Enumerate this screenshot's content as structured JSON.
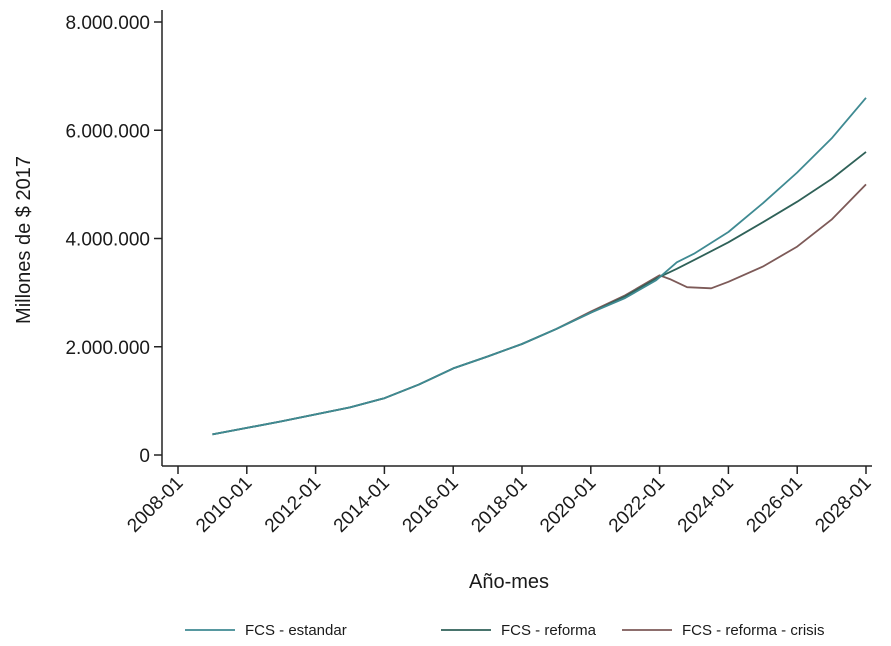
{
  "chart_data": {
    "type": "line",
    "xlabel": "Año-mes",
    "ylabel": "Millones de $ 2017",
    "x_ticks": [
      "2008-01",
      "2010-01",
      "2012-01",
      "2014-01",
      "2016-01",
      "2018-01",
      "2020-01",
      "2022-01",
      "2024-01",
      "2026-01",
      "2028-01"
    ],
    "y_ticks": [
      {
        "value": 0,
        "label": "0"
      },
      {
        "value": 2000000,
        "label": "2.000.000"
      },
      {
        "value": 4000000,
        "label": "4.000.000"
      },
      {
        "value": 6000000,
        "label": "6.000.000"
      },
      {
        "value": 8000000,
        "label": "8.000.000"
      }
    ],
    "xlim": [
      2008,
      2028
    ],
    "ylim": [
      0,
      8000000
    ],
    "legend_position": "bottom",
    "series": [
      {
        "name": "FCS - estandar",
        "color": "#3f8a92",
        "points": [
          [
            2009.0,
            380000
          ],
          [
            2010.0,
            500000
          ],
          [
            2011.0,
            620000
          ],
          [
            2012.0,
            750000
          ],
          [
            2013.0,
            880000
          ],
          [
            2014.0,
            1050000
          ],
          [
            2015.0,
            1300000
          ],
          [
            2016.0,
            1600000
          ],
          [
            2017.0,
            1820000
          ],
          [
            2018.0,
            2050000
          ],
          [
            2019.0,
            2330000
          ],
          [
            2020.0,
            2630000
          ],
          [
            2021.0,
            2900000
          ],
          [
            2021.9,
            3230000
          ],
          [
            2022.5,
            3560000
          ],
          [
            2023.0,
            3720000
          ],
          [
            2024.0,
            4120000
          ],
          [
            2025.0,
            4650000
          ],
          [
            2026.0,
            5220000
          ],
          [
            2027.0,
            5850000
          ],
          [
            2028.0,
            6600000
          ]
        ]
      },
      {
        "name": "FCS - reforma",
        "color": "#2f6158",
        "points": [
          [
            2009.0,
            380000
          ],
          [
            2010.0,
            500000
          ],
          [
            2011.0,
            620000
          ],
          [
            2012.0,
            750000
          ],
          [
            2013.0,
            880000
          ],
          [
            2014.0,
            1050000
          ],
          [
            2015.0,
            1300000
          ],
          [
            2016.0,
            1600000
          ],
          [
            2017.0,
            1820000
          ],
          [
            2018.0,
            2050000
          ],
          [
            2019.0,
            2330000
          ],
          [
            2020.0,
            2630000
          ],
          [
            2021.0,
            2930000
          ],
          [
            2021.9,
            3260000
          ],
          [
            2022.5,
            3440000
          ],
          [
            2023.0,
            3600000
          ],
          [
            2024.0,
            3930000
          ],
          [
            2025.0,
            4300000
          ],
          [
            2026.0,
            4680000
          ],
          [
            2027.0,
            5100000
          ],
          [
            2028.0,
            5600000
          ]
        ]
      },
      {
        "name": "FCS - reforma - crisis",
        "color": "#7d5a58",
        "points": [
          [
            2009.0,
            380000
          ],
          [
            2010.0,
            500000
          ],
          [
            2011.0,
            620000
          ],
          [
            2012.0,
            750000
          ],
          [
            2013.0,
            880000
          ],
          [
            2014.0,
            1050000
          ],
          [
            2015.0,
            1300000
          ],
          [
            2016.0,
            1600000
          ],
          [
            2017.0,
            1820000
          ],
          [
            2018.0,
            2050000
          ],
          [
            2019.0,
            2330000
          ],
          [
            2020.0,
            2650000
          ],
          [
            2021.0,
            2950000
          ],
          [
            2022.0,
            3320000
          ],
          [
            2022.3,
            3250000
          ],
          [
            2022.8,
            3100000
          ],
          [
            2023.5,
            3080000
          ],
          [
            2024.0,
            3200000
          ],
          [
            2025.0,
            3480000
          ],
          [
            2026.0,
            3850000
          ],
          [
            2027.0,
            4350000
          ],
          [
            2028.0,
            5000000
          ]
        ]
      }
    ]
  }
}
